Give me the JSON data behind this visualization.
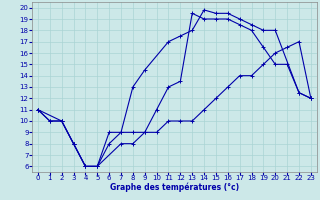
{
  "xlabel": "Graphe des températures (°c)",
  "bg_color": "#cce8e8",
  "grid_color": "#aad4d4",
  "line_color": "#0000aa",
  "xlim": [
    -0.5,
    23.5
  ],
  "ylim": [
    5.5,
    20.5
  ],
  "xticks": [
    0,
    1,
    2,
    3,
    4,
    5,
    6,
    7,
    8,
    9,
    10,
    11,
    12,
    13,
    14,
    15,
    16,
    17,
    18,
    19,
    20,
    21,
    22,
    23
  ],
  "yticks": [
    6,
    7,
    8,
    9,
    10,
    11,
    12,
    13,
    14,
    15,
    16,
    17,
    18,
    19,
    20
  ],
  "series": [
    {
      "x": [
        0,
        1,
        2,
        3,
        4,
        5,
        6,
        7,
        8,
        9,
        11,
        12,
        13,
        14,
        15,
        16,
        17,
        18,
        19,
        20,
        22,
        23
      ],
      "y": [
        11,
        10,
        10,
        8,
        6,
        6,
        9,
        9,
        13,
        14.5,
        17,
        17.5,
        18,
        19.8,
        19.5,
        19.5,
        19,
        18.5,
        18,
        18,
        12.5,
        12
      ]
    },
    {
      "x": [
        0,
        1,
        2,
        3,
        4,
        5,
        6,
        7,
        8,
        9,
        10,
        11,
        12,
        13,
        14,
        15,
        16,
        17,
        18,
        19,
        20,
        21,
        22,
        23
      ],
      "y": [
        11,
        10,
        10,
        8,
        6,
        6,
        8,
        9,
        9,
        9,
        11,
        13,
        13.5,
        19.5,
        19,
        19,
        19,
        18.5,
        18,
        16.5,
        15,
        15,
        12.5,
        12
      ]
    },
    {
      "x": [
        0,
        2,
        3,
        4,
        5,
        7,
        8,
        9,
        10,
        11,
        12,
        13,
        14,
        15,
        16,
        17,
        18,
        19,
        20,
        21,
        22,
        23
      ],
      "y": [
        11,
        10,
        8,
        6,
        6,
        8,
        8,
        9,
        9,
        10,
        10,
        10,
        11,
        12,
        13,
        14,
        14,
        15,
        16,
        16.5,
        17,
        12
      ]
    }
  ]
}
